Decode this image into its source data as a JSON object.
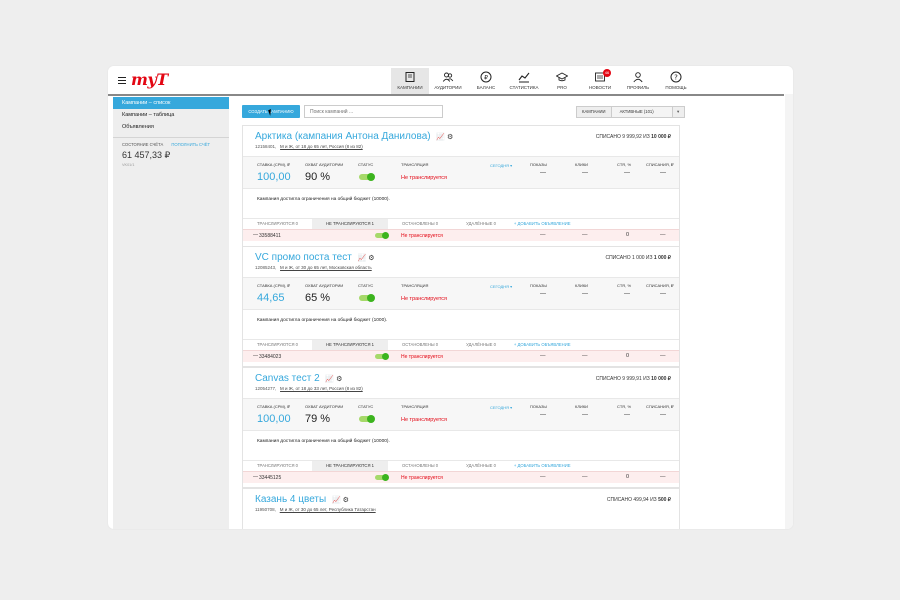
{
  "app": {
    "logo": "myT"
  },
  "nav": [
    {
      "label": "Кампании",
      "icon": "campaigns-icon",
      "active": true
    },
    {
      "label": "Аудитории",
      "icon": "audiences-icon"
    },
    {
      "label": "Баланс",
      "icon": "ruble-icon"
    },
    {
      "label": "Статистика",
      "icon": "statistics-icon"
    },
    {
      "label": "PRO",
      "icon": "graduation-cap-icon"
    },
    {
      "label": "Новости",
      "icon": "news-icon",
      "badge": "46"
    },
    {
      "label": "Профиль",
      "icon": "profile-icon"
    },
    {
      "label": "Помощь",
      "icon": "help-icon"
    }
  ],
  "sidebar": {
    "items": [
      {
        "label": "Кампании – список",
        "active": true
      },
      {
        "label": "Кампании – таблица"
      },
      {
        "label": "Объявления"
      }
    ],
    "balance_label": "Состояние счёта",
    "balance_link": "Пополнить счёт",
    "balance_value": "61 457,33 ₽",
    "balance_sub": "VK01/1"
  },
  "toolbar": {
    "create_label": "Создать кампанию",
    "search_placeholder": "Поиск кампаний ...",
    "filter_label": "Кампании",
    "filter_value": "Активные (101)",
    "filter_arrow": "▾"
  },
  "columns": {
    "bid": "Ставка (CPM), ₽",
    "reach": "Охват аудитории",
    "status": "Статус",
    "broadcast": "Трансляция",
    "period": "Сегодня ▾",
    "shows": "Показы",
    "clicks": "Клики",
    "ctr": "CTR, %",
    "spent": "Списания, ₽",
    "dash": "—"
  },
  "tabs": {
    "broadcasting": "Транслируются 0",
    "not_broadcasting": "Не транслируются 1",
    "stopped": "Остановлены 0",
    "deleted": "Удалённые 0",
    "add_ad": "+ Добавить объявление"
  },
  "campaigns": [
    {
      "name": "Арктика (кампания Антона Данилова)",
      "id": "12158401,",
      "target": "М и Ж, от 18 до 65 лет, Россия (8 из 82)",
      "spent_prefix": "Списано 9 999,92 из ",
      "spent_total": "10 000 ₽",
      "bid": "100,00",
      "reach": "90 %",
      "broadcast": "Не транслируется",
      "note": "Кампания достигла ограничения на общий бюджет (10000).",
      "ad_id": "33588411",
      "ad_ctr": "0"
    },
    {
      "name": "VC промо поста тест",
      "id": "12085243,",
      "target": "М и Ж, от 30 до 65 лет, Московская область",
      "spent_prefix": "Списано 1 000 из ",
      "spent_total": "1 000 ₽",
      "bid": "44,65",
      "reach": "65 %",
      "broadcast": "Не транслируется",
      "note": "Кампания достигла ограничения на общий бюджет (1000).",
      "ad_id": "33484023",
      "ad_ctr": "0"
    },
    {
      "name": "Canvas тест 2",
      "id": "12054277,",
      "target": "М и Ж, от 18 до 33 лет, Россия (8 из 82)",
      "spent_prefix": "Списано 9 999,91 из ",
      "spent_total": "10 000 ₽",
      "bid": "100,00",
      "reach": "79 %",
      "broadcast": "Не транслируется",
      "note": "Кампания достигла ограничения на общий бюджет (10000).",
      "ad_id": "33445125",
      "ad_ctr": "0"
    },
    {
      "name": "Казань 4 цветы",
      "id": "11950708,",
      "target": "М и Ж, от 30 до 65 лет, Республика Татарстан",
      "spent_prefix": "Списано 499,94 из ",
      "spent_total": "500 ₽"
    }
  ],
  "colors": {
    "accent": "#36a8dc",
    "alert": "#e30613",
    "toggle": "#3cb41e"
  }
}
